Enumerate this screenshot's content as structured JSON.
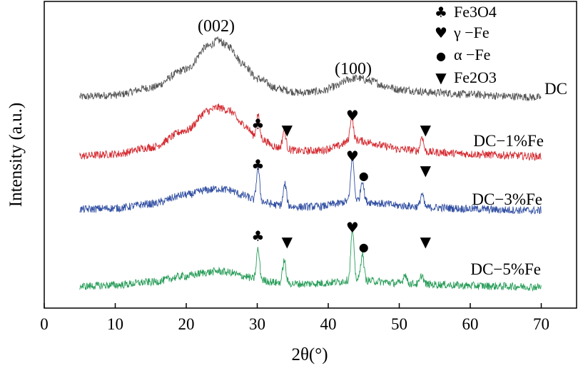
{
  "chart_data": {
    "type": "line",
    "xlabel": "2θ(°)",
    "ylabel": "Intensity (a.u.)",
    "xlim": [
      0,
      75
    ],
    "xticks": [
      "0",
      "10",
      "20",
      "30",
      "40",
      "50",
      "60",
      "70"
    ],
    "annotations": [
      "(002)",
      "(100)"
    ],
    "legend": [
      {
        "symbol": "♣",
        "label": "Fe3O4"
      },
      {
        "symbol": "♥",
        "label": "γ −Fe"
      },
      {
        "symbol": "●",
        "label": "α −Fe"
      },
      {
        "symbol": "▼",
        "label": "Fe2O3"
      }
    ],
    "series": [
      {
        "name": "DC",
        "color": "#555555",
        "x": [
          5,
          10,
          15,
          20,
          23,
          24.5,
          26,
          28,
          30,
          33,
          36,
          39,
          41,
          43,
          44,
          46,
          48,
          50,
          55,
          60,
          65,
          70
        ],
        "y": [
          0.5,
          0.8,
          2.0,
          5.0,
          8.8,
          9.8,
          8.8,
          6.0,
          3.5,
          1.8,
          1.2,
          1.4,
          2.2,
          3.4,
          3.6,
          3.1,
          2.3,
          1.7,
          1.2,
          0.9,
          0.6,
          0.4
        ],
        "peaks": []
      },
      {
        "name": "DC−1%Fe",
        "color": "#d42a30",
        "x": [
          5,
          10,
          15,
          20,
          23,
          24.5,
          26,
          28,
          30,
          33,
          36,
          39,
          41,
          43,
          44,
          46,
          48,
          50,
          55,
          60,
          65,
          70
        ],
        "y": [
          0.4,
          0.7,
          1.8,
          4.6,
          7.8,
          8.4,
          7.9,
          5.6,
          3.4,
          1.8,
          1.2,
          1.3,
          1.9,
          2.8,
          3.0,
          2.6,
          2.0,
          1.5,
          1.0,
          0.7,
          0.5,
          0.3
        ],
        "peaks": [
          [
            30.1,
            3.8
          ],
          [
            33.8,
            3.0
          ],
          [
            43.3,
            4.2
          ],
          [
            53.2,
            2.5
          ]
        ]
      },
      {
        "name": "DC−3%Fe",
        "color": "#3350a3",
        "x": [
          5,
          10,
          15,
          20,
          23,
          24.5,
          26,
          28,
          30,
          33,
          36,
          39,
          41,
          43,
          44,
          46,
          48,
          50,
          55,
          60,
          65,
          70
        ],
        "y": [
          0.4,
          0.6,
          1.3,
          2.8,
          3.6,
          3.8,
          3.6,
          2.7,
          1.8,
          1.1,
          0.8,
          0.9,
          1.3,
          1.8,
          1.9,
          1.6,
          1.3,
          1.0,
          0.7,
          0.5,
          0.3,
          0.2
        ],
        "peaks": [
          [
            30.1,
            5.5
          ],
          [
            33.9,
            3.5
          ],
          [
            43.4,
            7.5
          ],
          [
            44.8,
            3.5
          ],
          [
            53.2,
            2.2
          ]
        ]
      },
      {
        "name": "DC−5%Fe",
        "color": "#2a9e5a",
        "x": [
          5,
          10,
          15,
          20,
          23,
          24.5,
          26,
          28,
          30,
          33,
          36,
          39,
          41,
          43,
          44,
          46,
          48,
          50,
          55,
          60,
          65,
          70
        ],
        "y": [
          0.3,
          0.5,
          1.0,
          2.0,
          2.6,
          2.8,
          2.6,
          2.0,
          1.4,
          0.9,
          0.7,
          0.8,
          1.0,
          1.3,
          1.4,
          1.2,
          1.0,
          0.8,
          0.6,
          0.4,
          0.3,
          0.2
        ],
        "peaks": [
          [
            30.1,
            5.0
          ],
          [
            33.8,
            3.7
          ],
          [
            43.4,
            8.3
          ],
          [
            44.8,
            4.5
          ],
          [
            50.8,
            1.6
          ],
          [
            53.2,
            1.5
          ]
        ]
      }
    ],
    "markers": [
      {
        "series": 1,
        "symbols": [
          {
            "x": 30.1,
            "s": "♣"
          },
          {
            "x": 34.2,
            "s": "▼"
          },
          {
            "x": 43.4,
            "s": "♥"
          },
          {
            "x": 53.7,
            "s": "▼"
          }
        ]
      },
      {
        "series": 2,
        "symbols": [
          {
            "x": 30.1,
            "s": "♣"
          },
          {
            "x": 43.4,
            "s": "♥"
          },
          {
            "x": 45.0,
            "s": "●"
          },
          {
            "x": 53.7,
            "s": "▼"
          }
        ]
      },
      {
        "series": 3,
        "symbols": [
          {
            "x": 30.1,
            "s": "♣"
          },
          {
            "x": 34.2,
            "s": "▼"
          },
          {
            "x": 43.4,
            "s": "♥"
          },
          {
            "x": 45.0,
            "s": "●"
          },
          {
            "x": 53.7,
            "s": "▼"
          }
        ]
      }
    ]
  }
}
